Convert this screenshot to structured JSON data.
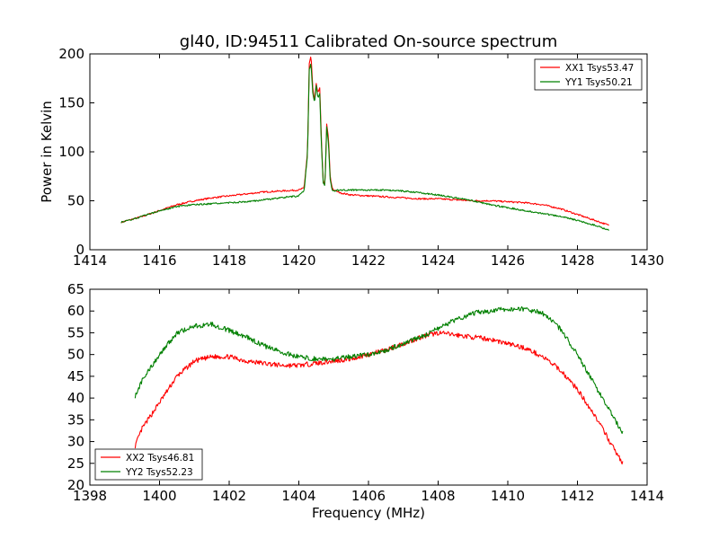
{
  "chart_data": [
    {
      "type": "line",
      "title": "gl40, ID:94511 Calibrated On-source spectrum",
      "xlabel": "",
      "ylabel": "Power in Kelvin",
      "xlim": [
        1414,
        1430
      ],
      "ylim": [
        0,
        200
      ],
      "xticks": [
        1414,
        1416,
        1418,
        1420,
        1422,
        1424,
        1426,
        1428,
        1430
      ],
      "yticks": [
        0,
        50,
        100,
        150,
        200
      ],
      "legend": "top-right",
      "grid": false,
      "series": [
        {
          "name": "XX1 Tsys53.47",
          "color": "#ff0000",
          "x": [
            1414.9,
            1415.5,
            1416.0,
            1416.5,
            1417.0,
            1417.5,
            1418.0,
            1418.5,
            1419.0,
            1419.5,
            1420.0,
            1420.15,
            1420.25,
            1420.3,
            1420.35,
            1420.4,
            1420.45,
            1420.5,
            1420.55,
            1420.6,
            1420.65,
            1420.7,
            1420.75,
            1420.8,
            1420.85,
            1420.9,
            1420.95,
            1421.0,
            1421.2,
            1421.5,
            1422.0,
            1422.5,
            1423.0,
            1423.5,
            1424.0,
            1424.5,
            1425.0,
            1425.5,
            1426.0,
            1426.5,
            1427.0,
            1427.5,
            1428.0,
            1428.5,
            1428.9
          ],
          "y": [
            28,
            34,
            40,
            46,
            50,
            53,
            55,
            57,
            59,
            60,
            61,
            63,
            100,
            190,
            198,
            165,
            152,
            170,
            160,
            165,
            110,
            70,
            65,
            128,
            115,
            75,
            64,
            61,
            58,
            56,
            55,
            54,
            53,
            52,
            52,
            51,
            50,
            50,
            49,
            48,
            46,
            42,
            36,
            30,
            25
          ]
        },
        {
          "name": "YY1 Tsys50.21",
          "color": "#008000",
          "x": [
            1414.9,
            1415.5,
            1416.0,
            1416.5,
            1417.0,
            1417.5,
            1418.0,
            1418.5,
            1419.0,
            1419.5,
            1420.0,
            1420.15,
            1420.25,
            1420.3,
            1420.35,
            1420.4,
            1420.45,
            1420.5,
            1420.55,
            1420.6,
            1420.65,
            1420.7,
            1420.75,
            1420.8,
            1420.85,
            1420.9,
            1420.95,
            1421.0,
            1421.2,
            1421.5,
            1422.0,
            1422.5,
            1423.0,
            1423.5,
            1424.0,
            1424.5,
            1425.0,
            1425.5,
            1426.0,
            1426.5,
            1427.0,
            1427.5,
            1428.0,
            1428.5,
            1428.9
          ],
          "y": [
            28,
            34,
            40,
            44,
            46,
            47,
            48,
            49,
            51,
            53,
            55,
            60,
            98,
            185,
            190,
            160,
            150,
            168,
            155,
            160,
            105,
            68,
            65,
            125,
            110,
            72,
            62,
            60,
            61,
            61,
            61,
            61,
            60,
            58,
            56,
            53,
            50,
            46,
            43,
            40,
            37,
            34,
            30,
            25,
            20
          ]
        }
      ]
    },
    {
      "type": "line",
      "title": "",
      "xlabel": "Frequency (MHz)",
      "ylabel": "",
      "xlim": [
        1398,
        1414
      ],
      "ylim": [
        20,
        65
      ],
      "xticks": [
        1398,
        1400,
        1402,
        1404,
        1406,
        1408,
        1410,
        1412,
        1414
      ],
      "yticks": [
        20,
        25,
        30,
        35,
        40,
        45,
        50,
        55,
        60,
        65
      ],
      "legend": "bottom-left",
      "grid": false,
      "series": [
        {
          "name": "XX2 Tsys46.81",
          "color": "#ff0000",
          "x": [
            1399.3,
            1399.5,
            1400.0,
            1400.5,
            1401.0,
            1401.5,
            1402.0,
            1402.5,
            1403.0,
            1403.5,
            1404.0,
            1404.5,
            1405.0,
            1405.5,
            1406.0,
            1406.5,
            1407.0,
            1407.5,
            1408.0,
            1408.5,
            1409.0,
            1409.5,
            1410.0,
            1410.5,
            1411.0,
            1411.5,
            1412.0,
            1412.5,
            1413.0,
            1413.3
          ],
          "y": [
            29,
            33,
            39,
            45,
            48.5,
            49.5,
            49.5,
            48.5,
            48,
            47.5,
            47.5,
            48,
            48.5,
            49,
            50,
            51,
            52.5,
            54,
            55,
            54.5,
            54,
            53.5,
            52.5,
            51.5,
            49.5,
            46.5,
            42,
            36,
            29,
            25
          ]
        },
        {
          "name": "YY2 Tsys52.23",
          "color": "#008000",
          "x": [
            1399.3,
            1399.5,
            1400.0,
            1400.5,
            1401.0,
            1401.5,
            1402.0,
            1402.5,
            1403.0,
            1403.5,
            1404.0,
            1404.5,
            1405.0,
            1405.5,
            1406.0,
            1406.5,
            1407.0,
            1407.5,
            1408.0,
            1408.5,
            1409.0,
            1409.5,
            1410.0,
            1410.5,
            1411.0,
            1411.5,
            1412.0,
            1412.5,
            1413.0,
            1413.3
          ],
          "y": [
            40.5,
            44,
            50,
            55,
            56.5,
            57,
            55.5,
            54,
            52,
            50.5,
            49.5,
            49,
            49,
            49.5,
            50,
            51,
            52.5,
            54,
            56,
            58,
            59.5,
            60,
            60.5,
            60.5,
            59.5,
            56,
            50,
            43,
            36,
            32
          ]
        }
      ]
    }
  ]
}
